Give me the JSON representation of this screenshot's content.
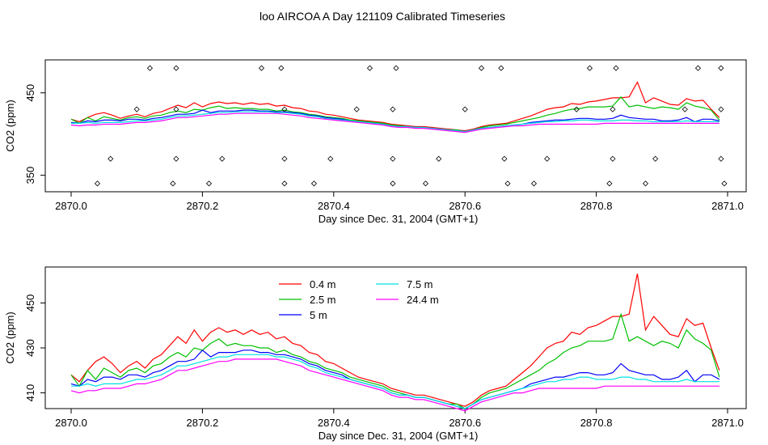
{
  "title": "loo AIRCOA A  Day 121109  Calibrated Timeseries",
  "colors": {
    "s0_4": "#ff0000",
    "s2_5": "#00c000",
    "s5": "#0000ff",
    "s7_5": "#00e0e0",
    "s24_4": "#ff00ff",
    "axis": "#000000"
  },
  "chart_data": [
    {
      "type": "line",
      "xlabel": "Day since Dec. 31, 2004 (GMT+1)",
      "ylabel": "CO2 (ppm)",
      "xlim": [
        2870.0,
        2871.0
      ],
      "ylim": [
        330,
        490
      ],
      "xticks": [
        "2870.0",
        "2870.2",
        "2870.4",
        "2870.6",
        "2870.8",
        "2871.0"
      ],
      "yticks": [
        "350",
        "450"
      ],
      "x": [
        2870.0,
        2870.0125,
        2870.025,
        2870.0375,
        2870.05,
        2870.0625,
        2870.075,
        2870.0875,
        2870.1,
        2870.1125,
        2870.125,
        2870.1375,
        2870.15,
        2870.1625,
        2870.175,
        2870.1875,
        2870.2,
        2870.2125,
        2870.225,
        2870.2375,
        2870.25,
        2870.2625,
        2870.275,
        2870.2875,
        2870.3,
        2870.3125,
        2870.325,
        2870.3375,
        2870.35,
        2870.3625,
        2870.375,
        2870.3875,
        2870.4,
        2870.4125,
        2870.425,
        2870.4375,
        2870.45,
        2870.4625,
        2870.475,
        2870.4875,
        2870.5,
        2870.5125,
        2870.525,
        2870.5375,
        2870.55,
        2870.5625,
        2870.575,
        2870.5875,
        2870.6,
        2870.6125,
        2870.625,
        2870.6375,
        2870.65,
        2870.6625,
        2870.675,
        2870.6875,
        2870.7,
        2870.7125,
        2870.725,
        2870.7375,
        2870.75,
        2870.7625,
        2870.775,
        2870.7875,
        2870.8,
        2870.8125,
        2870.825,
        2870.8375,
        2870.85,
        2870.8625,
        2870.875,
        2870.8875,
        2870.9,
        2870.9125,
        2870.925,
        2870.9375,
        2870.95,
        2870.9625,
        2870.975,
        2870.9875
      ],
      "series": [
        {
          "name": "0.4 m",
          "values": [
            418,
            415,
            420,
            424,
            426,
            423,
            419,
            422,
            424,
            421,
            425,
            427,
            431,
            435,
            432,
            438,
            433,
            437,
            439,
            437,
            438,
            436,
            438,
            436,
            437,
            434,
            435,
            432,
            431,
            428,
            427,
            424,
            423,
            421,
            419,
            417,
            416,
            415,
            414,
            412,
            411,
            410,
            409,
            409,
            408,
            407,
            406,
            405,
            404,
            406,
            409,
            411,
            412,
            413,
            416,
            419,
            422,
            426,
            430,
            432,
            433,
            437,
            436,
            439,
            440,
            442,
            444,
            444,
            445,
            463,
            438,
            444,
            440,
            436,
            435,
            443,
            440,
            441,
            430,
            420
          ]
        },
        {
          "name": "2.5 m",
          "values": [
            418,
            413,
            420,
            416,
            421,
            419,
            417,
            420,
            421,
            419,
            422,
            423,
            426,
            428,
            426,
            430,
            429,
            432,
            434,
            431,
            432,
            431,
            431,
            430,
            430,
            428,
            429,
            427,
            426,
            424,
            423,
            421,
            420,
            419,
            417,
            416,
            415,
            414,
            413,
            411,
            410,
            409,
            408,
            408,
            407,
            406,
            405,
            405,
            403,
            405,
            408,
            410,
            411,
            412,
            414,
            416,
            418,
            420,
            423,
            425,
            428,
            430,
            431,
            433,
            433,
            433,
            434,
            445,
            433,
            435,
            433,
            431,
            433,
            432,
            430,
            438,
            434,
            432,
            429,
            417
          ]
        },
        {
          "name": "5 m",
          "values": [
            414,
            413,
            416,
            415,
            417,
            417,
            416,
            418,
            418,
            417,
            419,
            420,
            422,
            424,
            424,
            425,
            429,
            426,
            428,
            428,
            428,
            429,
            429,
            428,
            428,
            427,
            427,
            426,
            425,
            423,
            422,
            420,
            419,
            418,
            416,
            415,
            414,
            413,
            412,
            410,
            409,
            409,
            408,
            408,
            407,
            406,
            405,
            404,
            403,
            405,
            407,
            408,
            409,
            410,
            411,
            412,
            414,
            415,
            416,
            417,
            417,
            418,
            419,
            419,
            418,
            418,
            419,
            423,
            420,
            419,
            418,
            418,
            416,
            416,
            417,
            420,
            415,
            418,
            418,
            416
          ]
        },
        {
          "name": "7.5 m",
          "values": [
            413,
            413,
            414,
            413,
            414,
            414,
            414,
            415,
            416,
            416,
            417,
            418,
            420,
            422,
            422,
            423,
            424,
            425,
            426,
            426,
            427,
            427,
            427,
            427,
            427,
            426,
            426,
            425,
            424,
            422,
            421,
            419,
            418,
            417,
            416,
            415,
            414,
            413,
            412,
            410,
            409,
            409,
            408,
            408,
            407,
            406,
            405,
            404,
            403,
            405,
            407,
            408,
            409,
            410,
            411,
            412,
            413,
            414,
            415,
            415,
            416,
            416,
            417,
            417,
            416,
            416,
            416,
            417,
            417,
            416,
            416,
            415,
            415,
            415,
            415,
            416,
            415,
            415,
            415,
            415
          ]
        },
        {
          "name": "24.4 m",
          "values": [
            411,
            410,
            411,
            411,
            412,
            412,
            412,
            413,
            414,
            414,
            415,
            416,
            418,
            420,
            420,
            421,
            422,
            423,
            424,
            424,
            425,
            425,
            425,
            425,
            425,
            425,
            424,
            423,
            422,
            420,
            419,
            418,
            417,
            416,
            415,
            414,
            413,
            412,
            411,
            409,
            408,
            408,
            407,
            407,
            406,
            405,
            404,
            403,
            402,
            404,
            406,
            407,
            408,
            409,
            410,
            410,
            411,
            412,
            412,
            412,
            412,
            412,
            412,
            412,
            412,
            413,
            413,
            413,
            413,
            413,
            413,
            413,
            413,
            413,
            413,
            413,
            413,
            413,
            413,
            413
          ]
        }
      ],
      "markers": {
        "x": [
          2870.04,
          2870.06,
          2870.1,
          2870.12,
          2870.155,
          2870.16,
          2870.16,
          2870.16,
          2870.21,
          2870.23,
          2870.29,
          2870.32,
          2870.325,
          2870.325,
          2870.325,
          2870.37,
          2870.395,
          2870.435,
          2870.455,
          2870.49,
          2870.49,
          2870.49,
          2870.495,
          2870.54,
          2870.56,
          2870.6,
          2870.625,
          2870.655,
          2870.66,
          2870.665,
          2870.705,
          2870.725,
          2870.77,
          2870.79,
          2870.82,
          2870.825,
          2870.825,
          2870.83,
          2870.875,
          2870.89,
          2870.935,
          2870.955,
          2870.99,
          2870.99,
          2870.99,
          2870.995
        ],
        "y": [
          340,
          370,
          430,
          480,
          340,
          370,
          430,
          480,
          340,
          370,
          480,
          480,
          340,
          370,
          430,
          340,
          370,
          430,
          480,
          340,
          370,
          430,
          480,
          340,
          370,
          430,
          480,
          480,
          370,
          340,
          340,
          370,
          430,
          480,
          340,
          370,
          430,
          480,
          340,
          370,
          430,
          480,
          480,
          430,
          370,
          340
        ]
      }
    },
    {
      "type": "line",
      "xlabel": "Day since Dec. 31, 2004 (GMT+1)",
      "ylabel": "CO2 (ppm)",
      "xlim": [
        2870.0,
        2871.0
      ],
      "ylim": [
        403,
        466
      ],
      "xticks": [
        "2870.0",
        "2870.2",
        "2870.4",
        "2870.6",
        "2870.8",
        "2871.0"
      ],
      "yticks": [
        "410",
        "430",
        "450"
      ],
      "legend": {
        "placement": "top-center"
      }
    }
  ]
}
